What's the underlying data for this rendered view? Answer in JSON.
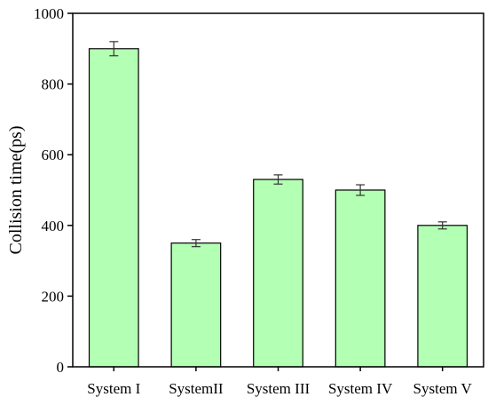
{
  "chart_data": {
    "type": "bar",
    "title": "",
    "xlabel": "",
    "ylabel": "Collision time(ps)",
    "ylim": [
      0,
      1000
    ],
    "yticks": [
      0,
      200,
      400,
      600,
      800,
      1000
    ],
    "categories": [
      "System I",
      "SystemII",
      "System III",
      "System IV",
      "System V"
    ],
    "values": [
      900,
      350,
      530,
      500,
      400
    ],
    "errors": [
      20,
      10,
      13,
      15,
      10
    ],
    "grid": false,
    "legend": "none",
    "colors": {
      "bar_fill": "#b3ffb3",
      "bar_stroke": "#000000",
      "error_bar": "#333333"
    }
  }
}
